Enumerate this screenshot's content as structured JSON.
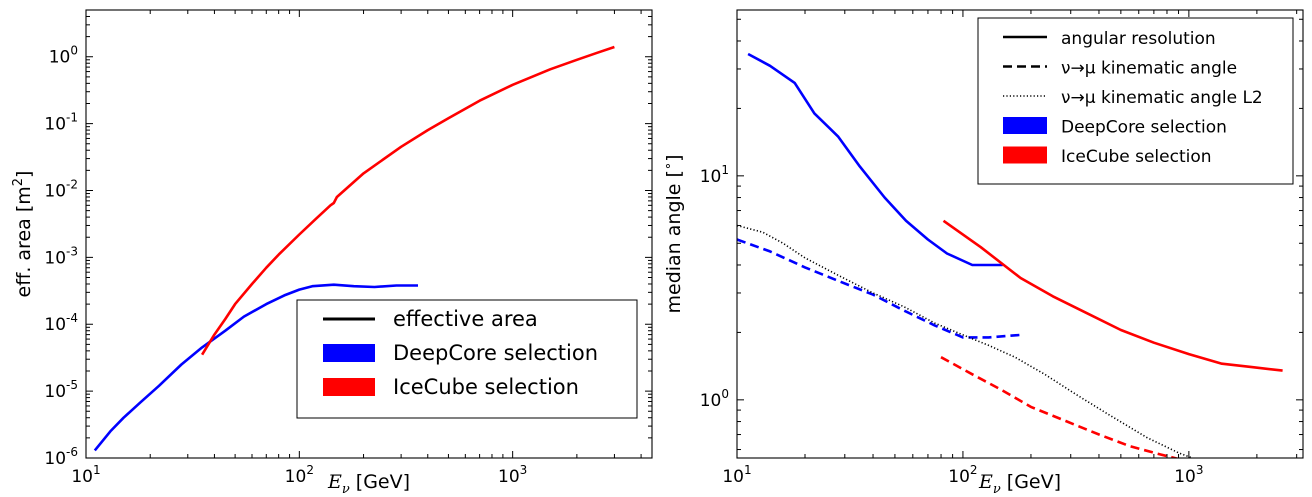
{
  "chart_data": [
    {
      "type": "line",
      "title": "",
      "xlabel_symbol": "E",
      "xlabel_sub": "ν",
      "xlabel_unit": " [GeV]",
      "ylabel_text": "eff. area [m",
      "ylabel_sup": "2",
      "ylabel_end": "]",
      "xscale": "log",
      "yscale": "log",
      "xlim": [
        10,
        4500
      ],
      "ylim": [
        1e-06,
        5
      ],
      "grid": false,
      "legend_position": "bottom-right",
      "x_ticks": [
        {
          "base": "10",
          "exp": "1",
          "value": 10
        },
        {
          "base": "10",
          "exp": "2",
          "value": 100
        },
        {
          "base": "10",
          "exp": "3",
          "value": 1000
        }
      ],
      "y_ticks": [
        {
          "base": "10",
          "exp": "-6",
          "value": 1e-06
        },
        {
          "base": "10",
          "exp": "-5",
          "value": 1e-05
        },
        {
          "base": "10",
          "exp": "-4",
          "value": 0.0001
        },
        {
          "base": "10",
          "exp": "-3",
          "value": 0.001
        },
        {
          "base": "10",
          "exp": "-2",
          "value": 0.01
        },
        {
          "base": "10",
          "exp": "-1",
          "value": 0.1
        },
        {
          "base": "10",
          "exp": "0",
          "value": 1
        }
      ],
      "legend": [
        {
          "label": "effective area",
          "style": "line",
          "color": "#000000"
        },
        {
          "label": "DeepCore selection",
          "style": "patch",
          "color": "#0000ff"
        },
        {
          "label": "IceCube selection",
          "style": "patch",
          "color": "#ff0000"
        }
      ],
      "series": [
        {
          "color": "#0000ff",
          "dash": "solid",
          "x": [
            11,
            13,
            15,
            18,
            22,
            28,
            35,
            45,
            55,
            70,
            85,
            100,
            115,
            145,
            180,
            225,
            285,
            360
          ],
          "y": [
            1.3e-06,
            2.5e-06,
            4e-06,
            6.8e-06,
            1.2e-05,
            2.5e-05,
            4.5e-05,
            8e-05,
            0.00013,
            0.0002,
            0.00027,
            0.00033,
            0.00037,
            0.00039,
            0.00037,
            0.00036,
            0.00038,
            0.00038
          ]
        },
        {
          "color": "#ff0000",
          "dash": "solid",
          "x": [
            35,
            40,
            45,
            50,
            60,
            70,
            80,
            100,
            120,
            140,
            145,
            150,
            200,
            300,
            400,
            500,
            700,
            1000,
            1500,
            2000,
            2500,
            3000
          ],
          "y": [
            3.5e-05,
            7e-05,
            0.00012,
            0.0002,
            0.0004,
            0.0007,
            0.0011,
            0.0022,
            0.0038,
            0.006,
            0.0065,
            0.008,
            0.018,
            0.045,
            0.08,
            0.12,
            0.22,
            0.38,
            0.65,
            0.9,
            1.15,
            1.4
          ]
        }
      ]
    },
    {
      "type": "line",
      "title": "",
      "xlabel_symbol": "E",
      "xlabel_sub": "ν",
      "xlabel_unit": " [GeV]",
      "ylabel_text": "median angle [",
      "ylabel_sup": "∘",
      "ylabel_end": "]",
      "xscale": "log",
      "yscale": "log",
      "xlim": [
        10,
        3200
      ],
      "ylim": [
        0.55,
        55
      ],
      "grid": false,
      "legend_position": "top-right",
      "x_ticks": [
        {
          "base": "10",
          "exp": "1",
          "value": 10
        },
        {
          "base": "10",
          "exp": "2",
          "value": 100
        },
        {
          "base": "10",
          "exp": "3",
          "value": 1000
        }
      ],
      "y_ticks": [
        {
          "base": "10",
          "exp": "0",
          "value": 1
        },
        {
          "base": "10",
          "exp": "1",
          "value": 10
        }
      ],
      "legend": [
        {
          "label": "angular resolution",
          "style": "line",
          "color": "#000000"
        },
        {
          "label": "ν→μ kinematic angle",
          "style": "dashed",
          "color": "#000000"
        },
        {
          "label": "ν→μ kinematic angle L2",
          "style": "dotted",
          "color": "#000000"
        },
        {
          "label": "DeepCore selection",
          "style": "patch",
          "color": "#0000ff"
        },
        {
          "label": "IceCube selection",
          "style": "patch",
          "color": "#ff0000"
        }
      ],
      "series": [
        {
          "color": "#0000ff",
          "dash": "solid",
          "x": [
            11.2,
            14,
            18,
            22,
            28,
            35,
            45,
            56,
            70,
            85,
            110,
            150
          ],
          "y": [
            35,
            31,
            26,
            19,
            15,
            11,
            8,
            6.3,
            5.2,
            4.5,
            4.0,
            4.0
          ]
        },
        {
          "color": "#ff0000",
          "dash": "solid",
          "x": [
            82,
            120,
            180,
            250,
            350,
            500,
            700,
            1000,
            1400,
            1900,
            2600
          ],
          "y": [
            6.3,
            4.8,
            3.5,
            2.9,
            2.45,
            2.05,
            1.8,
            1.6,
            1.45,
            1.4,
            1.35
          ]
        },
        {
          "color": "#0000ff",
          "dash": "dashed",
          "x": [
            10,
            14,
            20,
            28,
            40,
            55,
            75,
            100,
            130,
            180
          ],
          "y": [
            5.2,
            4.6,
            3.9,
            3.4,
            2.95,
            2.5,
            2.15,
            1.9,
            1.9,
            1.95
          ]
        },
        {
          "color": "#ff0000",
          "dash": "dashed",
          "x": [
            80,
            110,
            150,
            200,
            280,
            400,
            550,
            750,
            1000,
            1300,
            1800,
            2600
          ],
          "y": [
            1.55,
            1.3,
            1.1,
            0.93,
            0.81,
            0.7,
            0.62,
            0.57,
            0.53,
            0.5,
            0.48,
            0.49
          ]
        },
        {
          "color": "#000000",
          "dash": "dotted",
          "x": [
            10,
            13,
            16,
            20,
            28,
            40,
            55,
            75,
            100,
            130,
            170,
            230,
            320,
            450,
            650,
            900,
            1200
          ],
          "y": [
            6,
            5.6,
            5,
            4.3,
            3.6,
            3.0,
            2.6,
            2.2,
            1.95,
            1.75,
            1.55,
            1.3,
            1.05,
            0.85,
            0.68,
            0.58,
            0.52
          ]
        }
      ]
    }
  ]
}
